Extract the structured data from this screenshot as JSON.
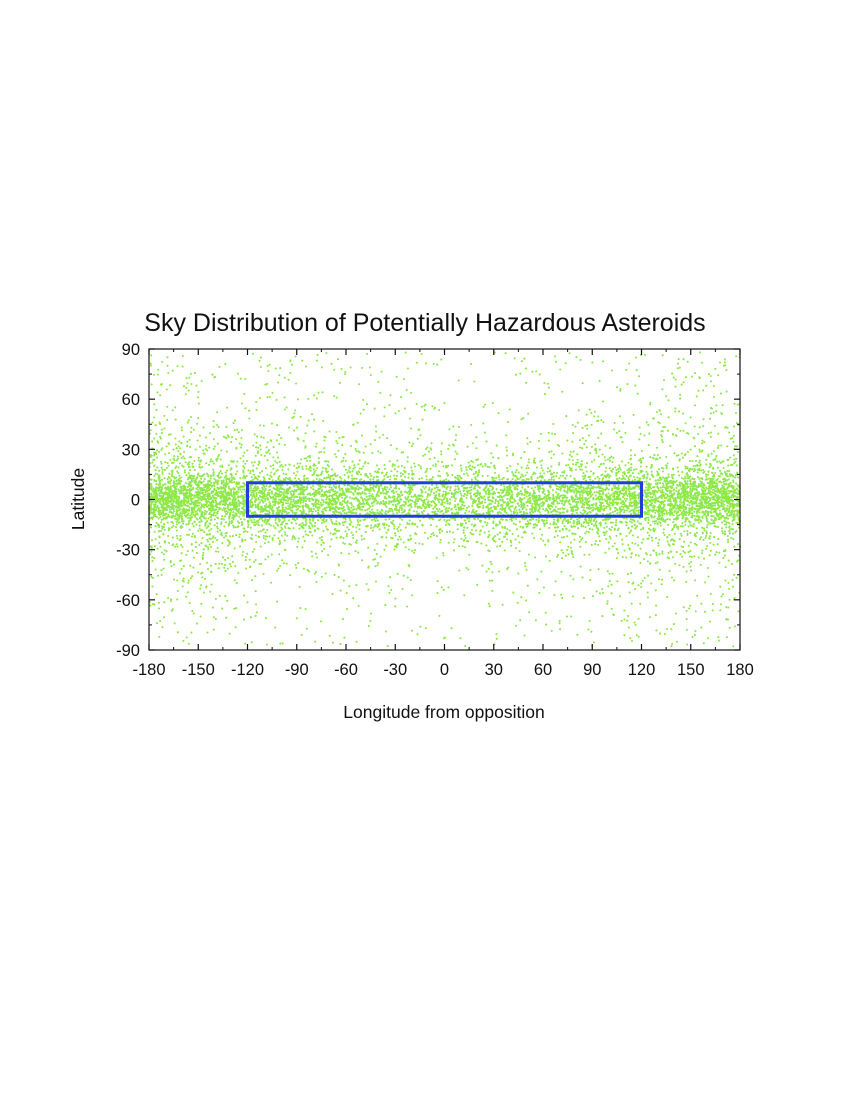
{
  "chart_data": {
    "type": "scatter",
    "title": "Sky Distribution of Potentially Hazardous Asteroids",
    "xlabel": "Longitude from opposition",
    "ylabel": "Latitude",
    "xlim": [
      -180,
      180
    ],
    "ylim": [
      -90,
      90
    ],
    "xticks": [
      -180,
      -150,
      -120,
      -90,
      -60,
      -30,
      0,
      30,
      60,
      90,
      120,
      150,
      180
    ],
    "yticks": [
      -90,
      -60,
      -30,
      0,
      30,
      60,
      90
    ],
    "grid": false,
    "legend": "none",
    "series": [
      {
        "color": "#8ee84a",
        "point_count": 9000,
        "distribution_note": "points concentrated near latitude 0, densest toward longitudes -180 and 180, sparse at high latitudes"
      }
    ],
    "annotations": [
      {
        "type": "rectangle",
        "x_range": [
          -120,
          120
        ],
        "y_range": [
          -10,
          10
        ],
        "color": "#1f3fd8"
      }
    ]
  }
}
